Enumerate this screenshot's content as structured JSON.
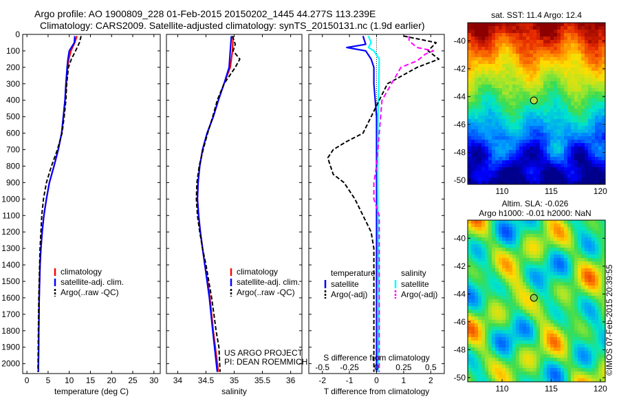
{
  "header": {
    "line1": "Argo profile: AO 1900809_228 01-Feb-2015 20150202_1445 44.277S 113.239E",
    "line2": "Climatology: CARS2009. Satellite-adjusted climatology: synTS_20150131.nc (1.9d earlier)"
  },
  "colors": {
    "climatology": "#ff0000",
    "satellite": "#0000ff",
    "argo": "#000000",
    "salinity_sat": "#00ffff",
    "salinity_argo": "#ff00ff"
  },
  "credits": {
    "project": "US ARGO PROJECT",
    "pi": "PI: DEAN ROEMMICH"
  },
  "side_label": "©IMOS 07-Feb-2015 20:39:55",
  "depth_axis": {
    "ticks": [
      0,
      100,
      200,
      300,
      400,
      500,
      600,
      700,
      800,
      900,
      1000,
      1100,
      1200,
      1300,
      1400,
      1500,
      1600,
      1700,
      1800,
      1900,
      2000
    ],
    "range": [
      0,
      2060
    ]
  },
  "chart_data": [
    {
      "type": "line",
      "id": "temperature",
      "xlabel": "temperature (deg C)",
      "xlim": [
        -1,
        31.5
      ],
      "xticks": [
        0,
        5,
        10,
        15,
        20,
        25,
        30
      ],
      "ylim": [
        0,
        2060
      ],
      "legend": [
        "climatology",
        "satellite-adj. clim.",
        "Argo(..raw -QC)"
      ],
      "series": [
        {
          "name": "climatology",
          "style": "solid",
          "color": "#ff0000",
          "depth": [
            10,
            50,
            100,
            150,
            200,
            300,
            400,
            500,
            600,
            700,
            800,
            900,
            1000,
            1100,
            1200,
            1300,
            1400,
            1500,
            1600,
            1800,
            2050
          ],
          "values": [
            11.8,
            11.3,
            10.4,
            9.9,
            9.6,
            9.3,
            9.0,
            8.6,
            8.2,
            7.4,
            6.4,
            5.3,
            4.6,
            4.0,
            3.6,
            3.3,
            3.1,
            3.0,
            2.9,
            2.8,
            2.7
          ]
        },
        {
          "name": "satellite-adj. clim.",
          "style": "solid",
          "color": "#0000ff",
          "depth": [
            10,
            50,
            100,
            150,
            200,
            300,
            400,
            500,
            600,
            700,
            800,
            900,
            1000,
            1100,
            1200,
            1300,
            1400,
            1500,
            1600,
            1800,
            2050
          ],
          "values": [
            11.3,
            11.2,
            10.0,
            9.7,
            9.5,
            9.2,
            9.0,
            8.6,
            8.2,
            7.4,
            6.4,
            5.3,
            4.6,
            4.0,
            3.6,
            3.3,
            3.1,
            3.0,
            2.9,
            2.8,
            2.7
          ]
        },
        {
          "name": "Argo(..raw -QC)",
          "style": "dashed",
          "color": "#000000",
          "depth": [
            10,
            50,
            100,
            150,
            200,
            300,
            400,
            500,
            600,
            700,
            800,
            900,
            1000,
            1100,
            1200,
            1300,
            1400,
            1500,
            1600,
            1800,
            2050
          ],
          "values": [
            12.8,
            12.4,
            11.5,
            10.5,
            9.8,
            9.4,
            9.2,
            8.8,
            8.3,
            7.2,
            5.8,
            4.6,
            3.9,
            3.5,
            3.3,
            3.1,
            3.0,
            2.9,
            2.8,
            2.7,
            2.6
          ]
        }
      ]
    },
    {
      "type": "line",
      "id": "salinity",
      "xlabel": "salinity",
      "xlim": [
        33.8,
        36.2
      ],
      "xticks": [
        34,
        34.5,
        35,
        35.5,
        36
      ],
      "ylim": [
        0,
        2060
      ],
      "legend": [
        "climatology",
        "satellite-adj. clim.",
        "Argo(..raw -QC)"
      ],
      "series": [
        {
          "name": "climatology",
          "style": "solid",
          "color": "#ff0000",
          "depth": [
            10,
            100,
            200,
            300,
            400,
            500,
            600,
            700,
            800,
            900,
            1000,
            1100,
            1200,
            1300,
            1400,
            1500,
            1600,
            1800,
            2050
          ],
          "values": [
            34.98,
            34.97,
            34.93,
            34.82,
            34.72,
            34.63,
            34.52,
            34.44,
            34.39,
            34.36,
            34.35,
            34.37,
            34.4,
            34.44,
            34.48,
            34.53,
            34.57,
            34.63,
            34.72
          ]
        },
        {
          "name": "satellite-adj. clim.",
          "style": "solid",
          "color": "#0000ff",
          "depth": [
            10,
            100,
            200,
            300,
            400,
            500,
            600,
            700,
            800,
            900,
            1000,
            1100,
            1200,
            1300,
            1400,
            1500,
            1600,
            1800,
            2050
          ],
          "values": [
            34.95,
            34.93,
            34.91,
            34.82,
            34.72,
            34.63,
            34.52,
            34.44,
            34.39,
            34.36,
            34.35,
            34.37,
            34.4,
            34.44,
            34.48,
            34.52,
            34.56,
            34.62,
            34.7
          ]
        },
        {
          "name": "Argo(..raw -QC)",
          "style": "dashed",
          "color": "#000000",
          "depth": [
            10,
            60,
            100,
            150,
            200,
            300,
            400,
            500,
            600,
            700,
            800,
            900,
            1000,
            1100,
            1200,
            1300,
            1400,
            1500,
            1600,
            1700,
            1800,
            1900,
            2050
          ],
          "values": [
            34.97,
            35.02,
            34.98,
            35.1,
            35.02,
            34.82,
            34.7,
            34.62,
            34.53,
            34.45,
            34.38,
            34.34,
            34.33,
            34.35,
            34.39,
            34.44,
            34.5,
            34.55,
            34.6,
            34.64,
            34.68,
            34.73,
            34.75
          ]
        }
      ]
    },
    {
      "type": "line",
      "id": "difference",
      "xlabel": "T difference from climatology",
      "xlabel_top": "S difference from climatology",
      "xlim": [
        -2.5,
        2.5
      ],
      "xticks": [
        -2,
        -1,
        0,
        1,
        2
      ],
      "xticks_top_labels": [
        "-0.5",
        "-0.25",
        "0",
        "0.25",
        "0.5"
      ],
      "xticks_top_positions": [
        -2,
        -1,
        0,
        1,
        2
      ],
      "ylim": [
        0,
        2060
      ],
      "legend_headers": [
        "temperature",
        "salinity"
      ],
      "legend": [
        "satellite",
        "Argo(-adj)",
        "satellite",
        "Argo(-adj)"
      ],
      "series": [
        {
          "name": "T satellite",
          "style": "solid",
          "color": "#0000ff",
          "depth": [
            10,
            60,
            80,
            100,
            150,
            200,
            300,
            500,
            700,
            900,
            1200,
            1500,
            2050
          ],
          "values": [
            -0.5,
            -0.4,
            -1.1,
            -0.4,
            -0.2,
            -0.1,
            -0.1,
            0,
            0,
            0,
            0,
            0,
            0
          ]
        },
        {
          "name": "S satellite",
          "style": "solid",
          "color": "#00ffff",
          "depth": [
            10,
            50,
            80,
            100,
            150,
            300,
            500,
            800,
            1200,
            1600,
            2050
          ],
          "values": [
            -0.3,
            -0.2,
            -0.3,
            -0.1,
            0.1,
            0.08,
            0.05,
            0.04,
            0.05,
            0.08,
            0.05
          ]
        },
        {
          "name": "T Argo(-adj)",
          "style": "dashed",
          "color": "#000000",
          "depth": [
            10,
            50,
            100,
            150,
            200,
            300,
            400,
            500,
            600,
            650,
            700,
            750,
            800,
            850,
            900,
            1000,
            1100,
            1200,
            1300,
            1400,
            1500,
            1600,
            1800,
            2050
          ],
          "values": [
            1.0,
            2.2,
            1.9,
            2.3,
            1.5,
            0.4,
            0.1,
            -0.2,
            -0.5,
            -1.1,
            -1.6,
            -1.8,
            -1.7,
            -1.6,
            -1.2,
            -0.8,
            -0.5,
            -0.2,
            -0.1,
            -0.1,
            -0.1,
            -0.1,
            -0.1,
            -0.1
          ]
        },
        {
          "name": "S Argo(-adj)",
          "style": "dashed",
          "color": "#ff00ff",
          "depth": [
            10,
            40,
            80,
            100,
            120,
            160,
            200,
            400,
            600,
            800,
            900,
            1000,
            1100,
            1300,
            1500,
            1700,
            1900,
            2050
          ],
          "values": [
            1.2,
            1.2,
            1.5,
            2.1,
            1.8,
            1.5,
            0.9,
            0.2,
            0.1,
            0.0,
            -0.1,
            -0.1,
            0.1,
            0.1,
            0.1,
            0.1,
            0.1,
            0.1
          ]
        }
      ]
    },
    {
      "type": "heatmap",
      "id": "sst_map",
      "title": "sat. SST: 11.4  Argo: 12.4",
      "xlim": [
        106.5,
        120.5
      ],
      "ylim": [
        -50.3,
        -38.7
      ],
      "xticks": [
        110,
        115,
        120
      ],
      "yticks": [
        -40,
        -42,
        -44,
        -46,
        -48,
        -50
      ],
      "marker": {
        "lon": 113.239,
        "lat": -44.277,
        "color": "#b8e03a"
      }
    },
    {
      "type": "heatmap",
      "id": "sla_map",
      "title": "Altim. SLA: -0.026",
      "subtitle": "Argo h1000: -0.01 h2000: NaN",
      "xlim": [
        106.5,
        120.5
      ],
      "ylim": [
        -50.3,
        -38.7
      ],
      "xticks": [
        110,
        115,
        120
      ],
      "yticks": [
        -40,
        -42,
        -44,
        -46,
        -48,
        -50
      ],
      "marker": {
        "lon": 113.239,
        "lat": -44.277,
        "color": "#8fd04a"
      }
    }
  ]
}
